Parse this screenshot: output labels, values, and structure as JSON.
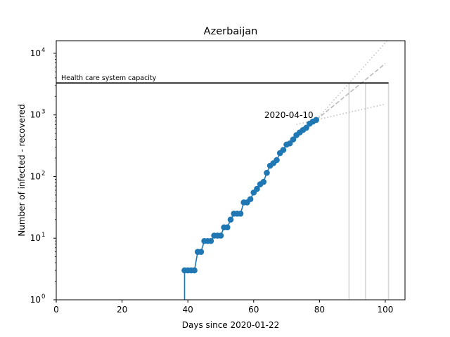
{
  "chart_data": {
    "type": "line",
    "title": "Azerbaijan",
    "xlabel": "Days since 2020-01-22",
    "ylabel": "Number of infected - recovered",
    "xlim": [
      0,
      106
    ],
    "ylim": [
      1,
      16000
    ],
    "yscale": "log",
    "xticks": [
      0,
      20,
      40,
      60,
      80,
      100
    ],
    "yticks": [
      {
        "value": 1,
        "base": "10",
        "exp": "0"
      },
      {
        "value": 10,
        "base": "10",
        "exp": "1"
      },
      {
        "value": 100,
        "base": "10",
        "exp": "2"
      },
      {
        "value": 1000,
        "base": "10",
        "exp": "3"
      },
      {
        "value": 10000,
        "base": "10",
        "exp": "4"
      }
    ],
    "grid": false,
    "color_series": "#1f77b4",
    "color_projection": "#bbbbbb",
    "color_vertical": "#d9d9d9",
    "series": [
      {
        "x": [
          39,
          40,
          41,
          42,
          43,
          44,
          45,
          46,
          47,
          48,
          49,
          50,
          51,
          52,
          53,
          54,
          55,
          56,
          57,
          58,
          59,
          60,
          61,
          62,
          63,
          64,
          65,
          66,
          67,
          68,
          69,
          70,
          71,
          72,
          73,
          74,
          75,
          76,
          77,
          78,
          79
        ],
        "y": [
          3,
          3,
          3,
          3,
          6,
          6,
          9,
          9,
          9,
          11,
          11,
          11,
          15,
          15,
          20,
          25,
          25,
          25,
          38,
          38,
          43,
          55,
          63,
          75,
          82,
          115,
          150,
          165,
          185,
          240,
          270,
          330,
          345,
          400,
          470,
          520,
          570,
          620,
          720,
          780,
          830
        ]
      }
    ],
    "pre_outbreak_x": 39,
    "capacity": {
      "value": 3300,
      "x_start": 0,
      "x_end": 101,
      "label": "Health care system capacity"
    },
    "projections": [
      {
        "style": "dotted",
        "points": [
          [
            70,
            300
          ],
          [
            79,
            830
          ],
          [
            101,
            17000
          ]
        ]
      },
      {
        "style": "dashed",
        "points": [
          [
            79,
            830
          ],
          [
            100,
            6800
          ]
        ]
      },
      {
        "style": "dotted",
        "points": [
          [
            73,
            700
          ],
          [
            79,
            830
          ],
          [
            100,
            1500
          ]
        ]
      }
    ],
    "vertical_markers": [
      {
        "x": 89,
        "y_top": 3300
      },
      {
        "x": 94,
        "y_top": 3300
      },
      {
        "x": 101,
        "y_top": 3300
      }
    ],
    "annotation": {
      "text": "2020-04-10",
      "x": 79,
      "y": 830
    }
  }
}
